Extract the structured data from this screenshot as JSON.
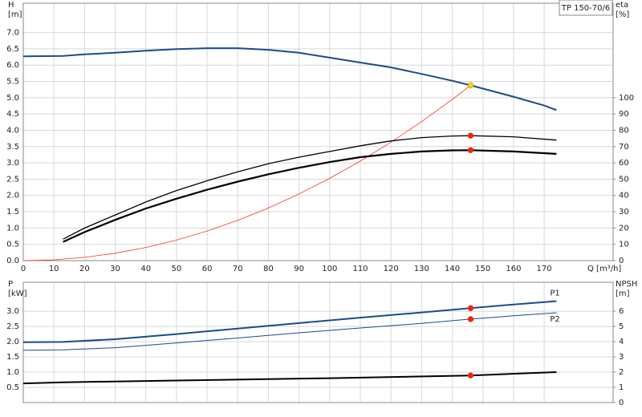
{
  "chart_data": [
    {
      "type": "line",
      "title": "TP 150-70/6",
      "ylabel": [
        "H",
        "[m]"
      ],
      "y2label": [
        "eta",
        "[%]"
      ],
      "xlabel": "Q [m³/h]",
      "xlim": [
        0,
        192.5
      ],
      "xticks": [
        0,
        10,
        20,
        30,
        40,
        50,
        60,
        70,
        80,
        90,
        100,
        110,
        120,
        130,
        140,
        150,
        160,
        170
      ],
      "ylim": [
        0,
        7.9
      ],
      "yticks": [
        {
          "value": 0,
          "label": "0.0"
        },
        0.5,
        {
          "value": 1,
          "label": "1.0"
        },
        1.5,
        {
          "value": 2,
          "label": "2.0"
        },
        2.5,
        {
          "value": 3,
          "label": "3.0"
        },
        3.5,
        {
          "value": 4,
          "label": "4.0"
        },
        4.5,
        {
          "value": 5,
          "label": "5.0"
        },
        5.5,
        {
          "value": 6,
          "label": "6.0"
        },
        6.5,
        {
          "value": 7,
          "label": "7.0"
        }
      ],
      "y2lim": [
        0,
        158
      ],
      "y2ticks": [
        0,
        10,
        20,
        30,
        40,
        50,
        60,
        70,
        80,
        90,
        100
      ],
      "grid": true,
      "series": [
        {
          "color": "#1a4c8b",
          "x": [
            0,
            13,
            20,
            30,
            40,
            50,
            60,
            70,
            80,
            90,
            100,
            110,
            120,
            130,
            140,
            146,
            150,
            160,
            170,
            174
          ],
          "values": [
            6.27,
            6.28,
            6.33,
            6.38,
            6.44,
            6.49,
            6.52,
            6.52,
            6.47,
            6.38,
            6.23,
            6.08,
            5.93,
            5.73,
            5.52,
            5.38,
            5.28,
            5.03,
            4.76,
            4.62
          ]
        },
        {
          "color": "#ff3030",
          "x": [
            0,
            10,
            20,
            30,
            40,
            50,
            60,
            70,
            80,
            90,
            100,
            110,
            120,
            130,
            140,
            146
          ],
          "values": [
            0,
            0.025,
            0.101,
            0.227,
            0.404,
            0.631,
            0.909,
            1.237,
            1.615,
            2.044,
            2.524,
            3.054,
            3.634,
            4.265,
            4.947,
            5.38
          ]
        },
        {
          "color": "#000000",
          "axis": "y2",
          "x": [
            13,
            20,
            30,
            40,
            50,
            60,
            70,
            80,
            90,
            100,
            110,
            120,
            130,
            140,
            146,
            160,
            174
          ],
          "values": [
            13.2,
            20,
            28,
            36,
            43,
            49,
            54.5,
            59.5,
            63.5,
            67,
            70.5,
            73.5,
            75.5,
            76.5,
            76.7,
            76,
            74
          ]
        },
        {
          "color": "#000000",
          "axis": "y2",
          "x": [
            13,
            20,
            30,
            40,
            50,
            60,
            70,
            80,
            90,
            100,
            110,
            120,
            130,
            140,
            146,
            160,
            174
          ],
          "values": [
            11.5,
            17.5,
            25,
            32,
            38,
            43.5,
            48.5,
            53,
            57,
            60.5,
            63.5,
            65.5,
            67,
            67.7,
            67.8,
            67,
            65.5
          ]
        }
      ],
      "points": [
        {
          "x": 146,
          "y": 5.38,
          "color": "#ffd200"
        },
        {
          "x": 146,
          "y": 76.7,
          "axis": "y2",
          "color": "#ff1a1a"
        },
        {
          "x": 146,
          "y": 67.8,
          "axis": "y2",
          "color": "#ff1a1a"
        }
      ]
    },
    {
      "type": "line",
      "ylabel": [
        "P",
        "[kW]"
      ],
      "y2label": [
        "NPSH",
        "[m]"
      ],
      "xlim": [
        0,
        192.5
      ],
      "xticks": [
        0,
        10,
        20,
        30,
        40,
        50,
        60,
        70,
        80,
        90,
        100,
        110,
        120,
        130,
        140,
        150,
        160,
        170
      ],
      "xtick_labels": false,
      "ylim": [
        0,
        3.95
      ],
      "yticks": [
        0.5,
        {
          "value": 1,
          "label": "1.0"
        },
        1.5,
        {
          "value": 2,
          "label": "2.0"
        },
        2.5,
        {
          "value": 3,
          "label": "3.0"
        }
      ],
      "y2lim": [
        0,
        7.9
      ],
      "y2ticks": [
        0,
        1,
        2,
        3,
        4,
        5,
        6
      ],
      "grid": true,
      "series": [
        {
          "name": "P1",
          "color": "#1a4c8b",
          "x": [
            0,
            13,
            30,
            50,
            70,
            90,
            110,
            130,
            146,
            160,
            174
          ],
          "values": [
            1.98,
            1.99,
            2.08,
            2.25,
            2.43,
            2.61,
            2.79,
            2.96,
            3.1,
            3.22,
            3.33
          ]
        },
        {
          "name": "P2",
          "color": "#1a4c8b",
          "x": [
            0,
            13,
            30,
            50,
            70,
            90,
            110,
            130,
            146,
            160,
            174
          ],
          "values": [
            1.72,
            1.73,
            1.8,
            1.96,
            2.12,
            2.29,
            2.45,
            2.6,
            2.74,
            2.85,
            2.95
          ]
        },
        {
          "color": "#000000",
          "axis": "y2",
          "x": [
            0,
            13,
            50,
            100,
            146,
            174
          ],
          "values": [
            1.26,
            1.33,
            1.45,
            1.6,
            1.78,
            2.0
          ]
        }
      ],
      "points": [
        {
          "x": 146,
          "y": 3.1,
          "color": "#ff1a1a"
        },
        {
          "x": 146,
          "y": 2.74,
          "color": "#ff1a1a"
        },
        {
          "x": 146,
          "y": 1.78,
          "axis": "y2",
          "color": "#ff1a1a"
        }
      ]
    }
  ]
}
